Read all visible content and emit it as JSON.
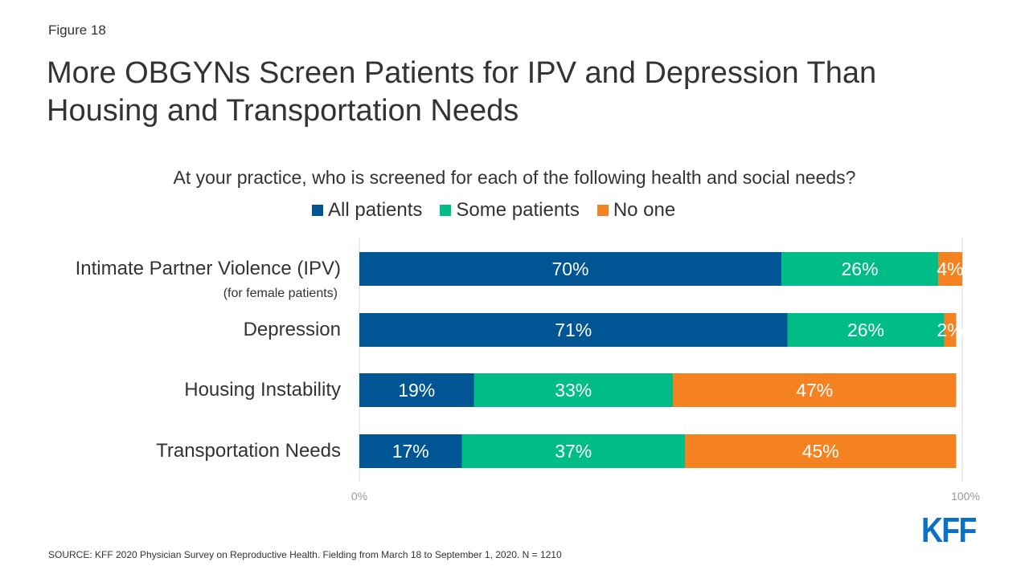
{
  "figure_label": "Figure 18",
  "title": "More OBGYNs Screen Patients for IPV and Depression Than Housing and Transportation Needs",
  "source": "SOURCE: KFF 2020 Physician Survey on Reproductive  Health. Fielding from March 18 to September 1, 2020. N = 1210",
  "logo": "KFF",
  "chart_data": {
    "type": "bar",
    "orientation": "horizontal",
    "stacked": true,
    "title": "At your practice, who is screened for each of the following health and social needs?",
    "categories": [
      "Intimate Partner Violence (IPV)",
      "Depression",
      "Housing Instability",
      "Transportation Needs"
    ],
    "category_sublabels": [
      "(for female patients)",
      "",
      "",
      ""
    ],
    "series": [
      {
        "name": "All patients",
        "color": "#005595",
        "values": [
          70,
          71,
          19,
          17
        ],
        "labels": [
          "70%",
          "71%",
          "19%",
          "17%"
        ]
      },
      {
        "name": "Some patients",
        "color": "#00bc87",
        "values": [
          26,
          26,
          33,
          37
        ],
        "labels": [
          "26%",
          "26%",
          "33%",
          "37%"
        ]
      },
      {
        "name": "No one",
        "color": "#f58220",
        "values": [
          4,
          2,
          47,
          45
        ],
        "labels": [
          "4%",
          "2%",
          "47%",
          "45%"
        ]
      }
    ],
    "xlim": [
      0,
      100
    ],
    "x_tick_labels": [
      "0%",
      "100%"
    ],
    "legend_position": "top",
    "grid": false
  }
}
